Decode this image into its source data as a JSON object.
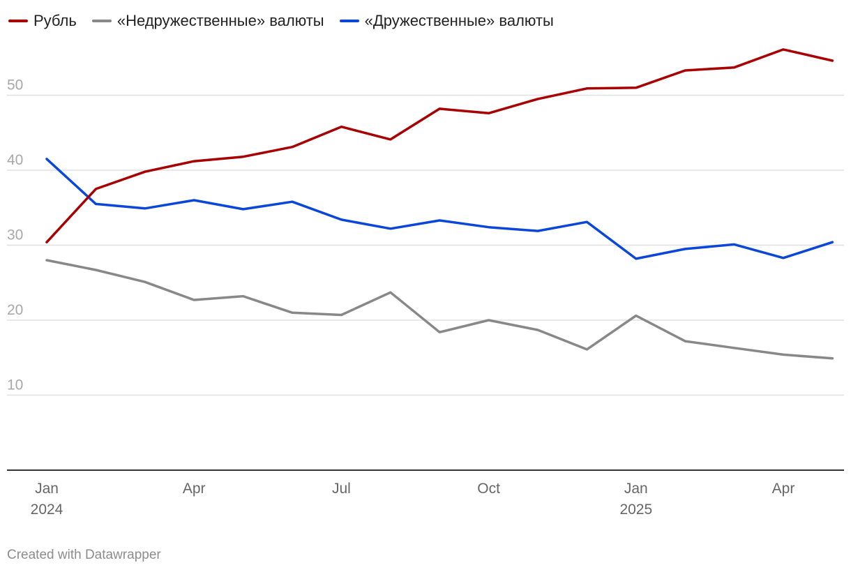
{
  "legend": [
    {
      "name": "Рубль",
      "color": "#a80000"
    },
    {
      "name": "«Недружественные» валюты",
      "color": "#888888"
    },
    {
      "name": "«Дружественные» валюты",
      "color": "#0a47d9"
    }
  ],
  "footer": "Created with Datawrapper",
  "chart_data": {
    "type": "line",
    "x": [
      "2024-01",
      "2024-02",
      "2024-03",
      "2024-04",
      "2024-05",
      "2024-06",
      "2024-07",
      "2024-08",
      "2024-09",
      "2024-10",
      "2024-11",
      "2024-12",
      "2025-01",
      "2025-02",
      "2025-03",
      "2025-04",
      "2025-05"
    ],
    "series": [
      {
        "name": "Рубль",
        "color": "#a80000",
        "values": [
          30.4,
          37.5,
          39.8,
          41.2,
          41.8,
          43.1,
          45.8,
          44.1,
          48.2,
          47.6,
          49.5,
          50.9,
          51.0,
          53.3,
          53.7,
          56.1,
          54.6
        ]
      },
      {
        "name": "«Недружественные» валюты",
        "color": "#888888",
        "values": [
          28.0,
          26.7,
          25.1,
          22.7,
          23.2,
          21.0,
          20.7,
          23.7,
          18.4,
          20.0,
          18.7,
          16.1,
          20.6,
          17.2,
          16.3,
          15.4,
          14.9
        ]
      },
      {
        "name": "«Дружественные» валюты",
        "color": "#0a47d9",
        "values": [
          41.5,
          35.5,
          34.9,
          36.0,
          34.8,
          35.8,
          33.4,
          32.2,
          33.3,
          32.4,
          31.9,
          33.1,
          28.2,
          29.5,
          30.1,
          28.3,
          30.4
        ]
      }
    ],
    "yticks": [
      "10",
      "20",
      "30",
      "40",
      "50"
    ],
    "xticks": [
      {
        "index": 0,
        "label": "Jan",
        "sublabel": "2024"
      },
      {
        "index": 3,
        "label": "Apr",
        "sublabel": ""
      },
      {
        "index": 6,
        "label": "Jul",
        "sublabel": ""
      },
      {
        "index": 9,
        "label": "Oct",
        "sublabel": ""
      },
      {
        "index": 12,
        "label": "Jan",
        "sublabel": "2025"
      },
      {
        "index": 15,
        "label": "Apr",
        "sublabel": ""
      }
    ],
    "ylim": [
      0,
      58
    ],
    "grid": true,
    "legend_position": "top-left"
  }
}
